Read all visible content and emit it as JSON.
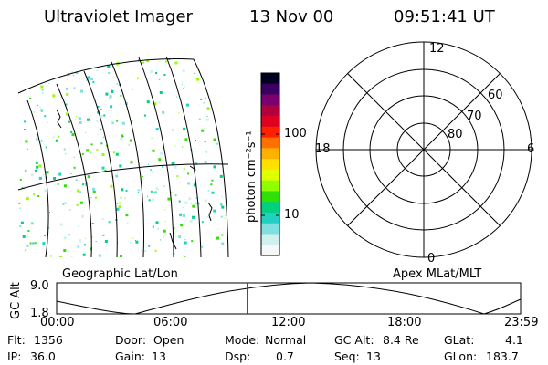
{
  "header": {
    "instrument": "Ultraviolet Imager",
    "date": "13 Nov 00",
    "time": "09:51:41 UT"
  },
  "map_panel": {
    "caption": "Geographic Lat/Lon"
  },
  "colorbar": {
    "unit_label": "photon cm⁻²s⁻¹",
    "tick_100": "100",
    "tick_10": "10",
    "colors": [
      "#000020",
      "#3a0060",
      "#7a0070",
      "#b00040",
      "#e00020",
      "#ff2000",
      "#ff7000",
      "#ffb000",
      "#ffe000",
      "#e0ff00",
      "#90ff00",
      "#30e000",
      "#00d080",
      "#20d0c0",
      "#80e0e0",
      "#d0f0f0",
      "#f4f8f8"
    ]
  },
  "polar_panel": {
    "caption": "Apex MLat/MLT",
    "mlt_12": "12",
    "mlt_18": "18",
    "mlt_6": "6",
    "mlt_0": "0",
    "mlat_60": "60",
    "mlat_70": "70",
    "mlat_80": "80"
  },
  "altitude_plot": {
    "ylabel": "GC Alt",
    "y_max_label": "9.0",
    "y_min_label": "1.8",
    "x_ticks": [
      "00:00",
      "06:00",
      "12:00",
      "18:00",
      "23:59"
    ],
    "current_time_marker": "09:51",
    "marker_color": "#cc0000"
  },
  "status": {
    "flt_label": "Flt:",
    "flt_value": "1356",
    "ip_label": "IP:",
    "ip_value": "36.0",
    "door_label": "Door:",
    "door_value": "Open",
    "gain_label": "Gain:",
    "gain_value": "13",
    "mode_label": "Mode:",
    "mode_value": "Normal",
    "dsp_label": "Dsp:",
    "dsp_value": "0.7",
    "gcalt_label": "GC Alt:",
    "gcalt_value": "8.4 Re",
    "seq_label": "Seq:",
    "seq_value": "13",
    "glat_label": "GLat:",
    "glat_value": "4.1",
    "glon_label": "GLon:",
    "glon_value": "183.7"
  }
}
